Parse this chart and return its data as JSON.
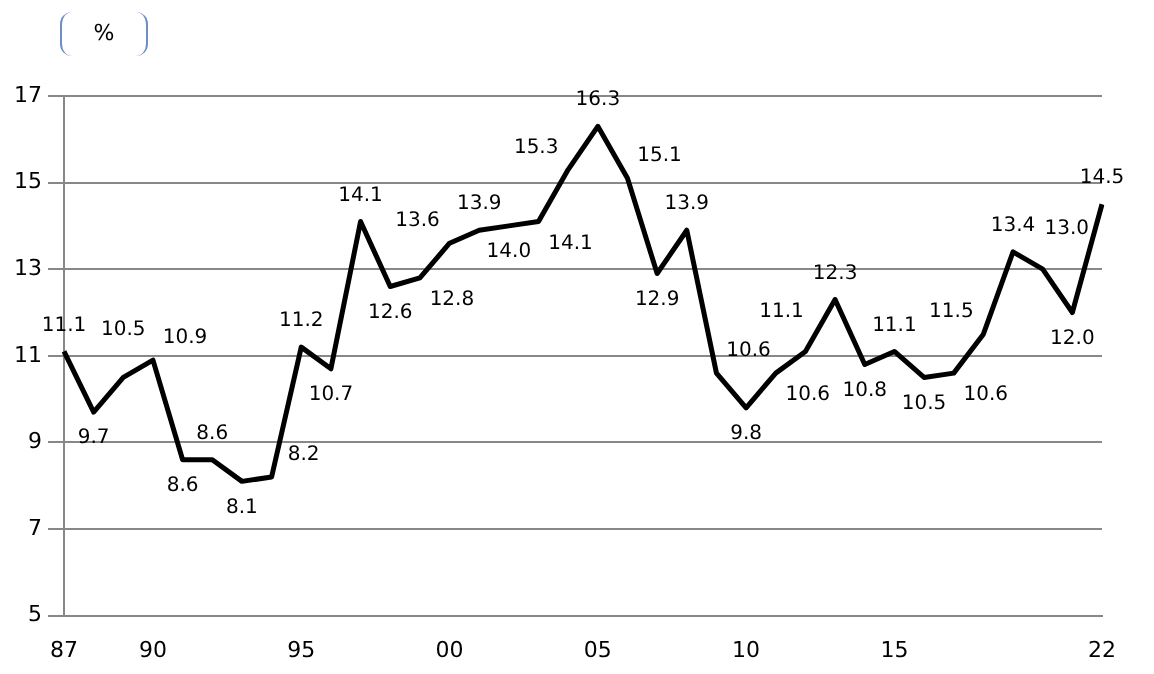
{
  "chart_data": {
    "type": "line",
    "ylabel": "%",
    "categories": [
      "87",
      null,
      null,
      "90",
      null,
      null,
      null,
      null,
      "95",
      null,
      null,
      null,
      null,
      "00",
      null,
      null,
      null,
      null,
      "05",
      null,
      null,
      null,
      null,
      "10",
      null,
      null,
      null,
      null,
      "15",
      null,
      null,
      null,
      null,
      null,
      null,
      "22"
    ],
    "series": [
      {
        "color": "#000000",
        "values": [
          11.1,
          9.7,
          10.5,
          10.9,
          8.6,
          8.6,
          8.1,
          8.2,
          11.2,
          10.7,
          14.1,
          12.6,
          12.8,
          13.6,
          13.9,
          14.0,
          14.1,
          15.3,
          16.3,
          15.1,
          12.9,
          13.9,
          10.6,
          9.8,
          10.6,
          11.1,
          12.3,
          10.8,
          11.1,
          10.5,
          10.6,
          11.5,
          13.4,
          13.0,
          12.0,
          14.5
        ],
        "value_labels": [
          "11.1",
          "9.7",
          "10.5",
          "10.9",
          "8.6",
          "8.6",
          "8.1",
          "8.2",
          "11.2",
          "10.7",
          "14.1",
          "12.6",
          "12.8",
          "13.6",
          "13.9",
          "14.0",
          "14.1",
          "15.3",
          "16.3",
          "15.1",
          "12.9",
          "13.9",
          "10.6",
          "9.8",
          "10.6",
          "11.1",
          "12.3",
          "10.8",
          "11.1",
          "10.5",
          "10.6",
          "11.5",
          "13.4",
          "13.0",
          "12.0",
          "14.5"
        ]
      }
    ],
    "ylim": [
      5,
      17
    ],
    "yticks": [
      5,
      7,
      9,
      11,
      13,
      15,
      17
    ],
    "grid": "y",
    "legend": false,
    "marker": "none",
    "line_style": "solid"
  }
}
